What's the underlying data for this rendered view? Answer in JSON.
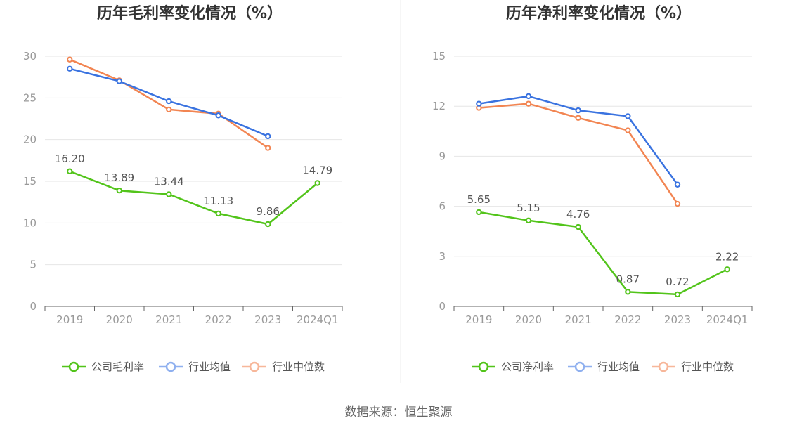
{
  "source": "数据来源：恒生聚源",
  "chart_data": [
    {
      "type": "line",
      "title": "历年毛利率变化情况（%）",
      "categories": [
        "2019",
        "2020",
        "2021",
        "2022",
        "2023",
        "2024Q1"
      ],
      "ylim": [
        0,
        30
      ],
      "yticks": [
        0,
        5,
        10,
        15,
        20,
        25,
        30
      ],
      "grid": true,
      "legend_position": "bottom",
      "series": [
        {
          "name": "公司毛利率",
          "color": "#52c41a",
          "labeled": true,
          "values": [
            16.2,
            13.89,
            13.44,
            11.13,
            9.86,
            14.79
          ],
          "labels": [
            "16.20",
            "13.89",
            "13.44",
            "11.13",
            "9.86",
            "14.79"
          ]
        },
        {
          "name": "行业均值",
          "color": "#3a73e0",
          "legend_color": "#8fb0ef",
          "labeled": false,
          "values": [
            28.5,
            27.0,
            24.6,
            22.9,
            20.4,
            null
          ]
        },
        {
          "name": "行业中位数",
          "color": "#f28552",
          "legend_color": "#f7b79a",
          "labeled": false,
          "values": [
            29.6,
            27.1,
            23.6,
            23.1,
            19.0,
            null
          ]
        }
      ]
    },
    {
      "type": "line",
      "title": "历年净利率变化情况（%）",
      "categories": [
        "2019",
        "2020",
        "2021",
        "2022",
        "2023",
        "2024Q1"
      ],
      "ylim": [
        0,
        15
      ],
      "yticks": [
        0,
        3,
        6,
        9,
        12,
        15
      ],
      "grid": true,
      "legend_position": "bottom",
      "series": [
        {
          "name": "公司净利率",
          "color": "#52c41a",
          "labeled": true,
          "values": [
            5.65,
            5.15,
            4.76,
            0.87,
            0.72,
            2.22
          ],
          "labels": [
            "5.65",
            "5.15",
            "4.76",
            "0.87",
            "0.72",
            "2.22"
          ]
        },
        {
          "name": "行业均值",
          "color": "#3a73e0",
          "legend_color": "#8fb0ef",
          "labeled": false,
          "values": [
            12.15,
            12.6,
            11.75,
            11.4,
            7.3,
            null
          ]
        },
        {
          "name": "行业中位数",
          "color": "#f28552",
          "legend_color": "#f7b79a",
          "labeled": false,
          "values": [
            11.9,
            12.15,
            11.3,
            10.55,
            6.15,
            null
          ]
        }
      ]
    }
  ]
}
